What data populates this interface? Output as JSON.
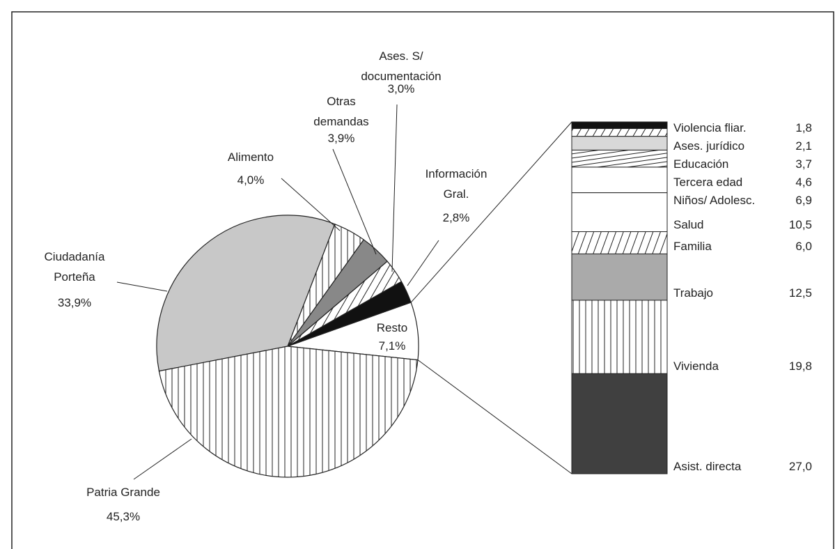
{
  "chart_data": {
    "type": "pie-of-bar",
    "pie": {
      "labels": [
        "Resto",
        "Información Gral.",
        "Ases. S/ documentación",
        "Otras demandas",
        "Alimento",
        "Ciudadanía Porteña",
        "Patria Grande"
      ],
      "values": [
        7.1,
        2.8,
        3.0,
        3.9,
        4.0,
        33.9,
        45.3
      ],
      "value_labels": [
        "7,1%",
        "2,8%",
        "3,0%",
        "3,9%",
        "4,0%",
        "33,9%",
        "45,3%"
      ],
      "colors": [
        "#ffffff",
        "#111111",
        "#ffffff",
        "#888888",
        "#ffffff",
        "#c8c8c8",
        "#ffffff"
      ],
      "patterns": [
        "none",
        "none",
        "diagonal",
        "none",
        "vertical",
        "none",
        "vertical"
      ]
    },
    "bar": {
      "categories": [
        "Violencia fliar.",
        "Ases. jurídico",
        "Educación",
        "Tercera edad",
        "Niños/ Adolesc.",
        "Salud",
        "Familia",
        "Trabajo",
        "Vivienda",
        "Asist. directa"
      ],
      "values": [
        1.8,
        2.1,
        3.7,
        4.6,
        6.9,
        10.5,
        6.0,
        12.5,
        19.8,
        27.0
      ],
      "value_labels": [
        "1,8",
        "2,1",
        "3,7",
        "4,6",
        "6,9",
        "10,5",
        "6,0",
        "12,5",
        "19,8",
        "27,0"
      ],
      "colors": [
        "#111111",
        "#ffffff",
        "#d8d8d8",
        "#ffffff",
        "#ffffff",
        "#ffffff",
        "#ffffff",
        "#aaaaaa",
        "#ffffff",
        "#404040"
      ],
      "patterns": [
        "none",
        "diagonal",
        "none",
        "lines",
        "none",
        "none",
        "steep",
        "none",
        "vertical",
        "none"
      ]
    }
  }
}
